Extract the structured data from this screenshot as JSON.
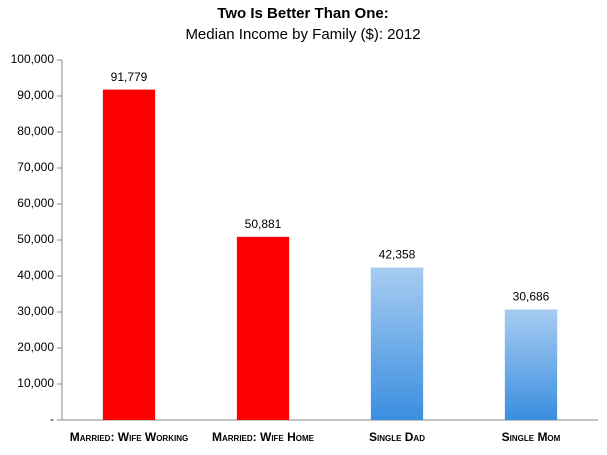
{
  "chart_data": {
    "type": "bar",
    "title": "Two Is Better Than One:",
    "subtitle": "Median Income by Family ($): 2012",
    "categories": [
      "Married: Wife Working",
      "Married: Wife Home",
      "Single Dad",
      "Single Mom"
    ],
    "values": [
      91779,
      50881,
      42358,
      30686
    ],
    "value_labels": [
      "91,779",
      "50,881",
      "42,358",
      "30,686"
    ],
    "colors": [
      "#ff0000",
      "#ff0000",
      "#3b8ee0",
      "#3b8ee0"
    ],
    "gradient": [
      false,
      false,
      true,
      true
    ],
    "ylim": [
      0,
      100000
    ],
    "yticks": [
      {
        "value": 0,
        "label": "-"
      },
      {
        "value": 10000,
        "label": "10,000"
      },
      {
        "value": 20000,
        "label": "20,000"
      },
      {
        "value": 30000,
        "label": "30,000"
      },
      {
        "value": 40000,
        "label": "40,000"
      },
      {
        "value": 50000,
        "label": "50,000"
      },
      {
        "value": 60000,
        "label": "60,000"
      },
      {
        "value": 70000,
        "label": "70,000"
      },
      {
        "value": 80000,
        "label": "80,000"
      },
      {
        "value": 90000,
        "label": "90,000"
      },
      {
        "value": 100000,
        "label": "100,000"
      }
    ],
    "grid": false
  }
}
